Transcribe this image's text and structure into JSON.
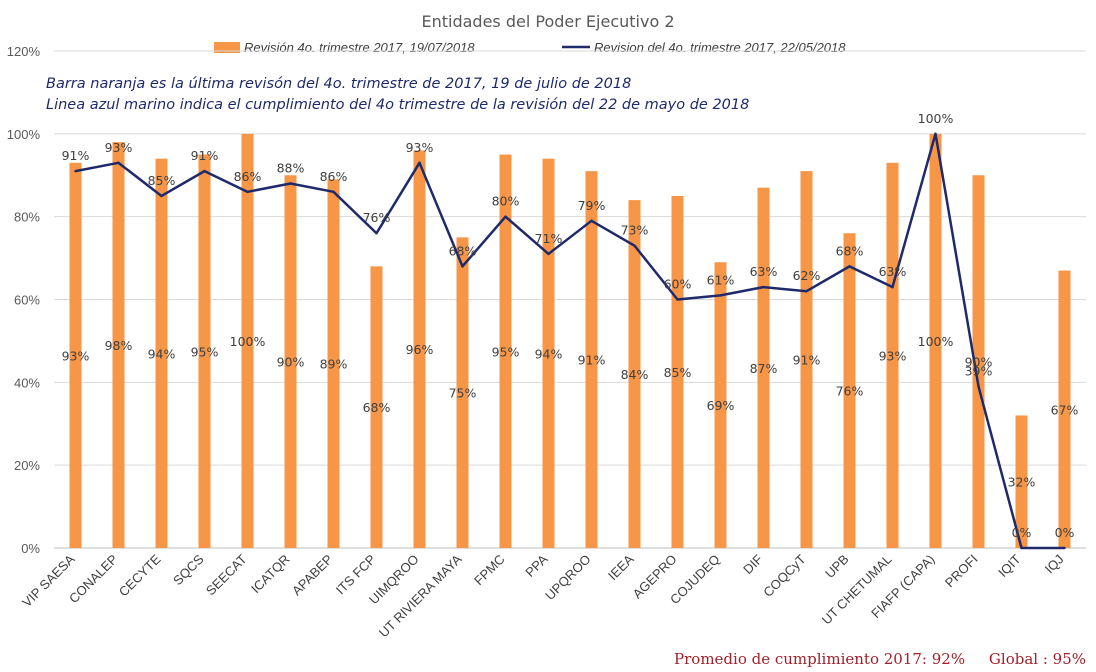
{
  "chart_data": {
    "type": "bar",
    "title": "Entidades del Poder Ejecutivo 2",
    "categories": [
      "VIP SAESA",
      "CONALEP",
      "CECYTE",
      "SQCS",
      "SEECAT",
      "ICATQR",
      "APABEP",
      "ITS FCP",
      "UIMQROO",
      "UT RIVIERA MAYA",
      "FPMC",
      "PPA",
      "UPQROO",
      "IEEA",
      "AGEPRO",
      "COJUDEQ",
      "DIF",
      "COQCyT",
      "UPB",
      "UT CHETUMAL",
      "FIAFP (CAPA)",
      "PROFI",
      "IQIT",
      "IQJ"
    ],
    "series": [
      {
        "name": "Revisión 4o. trimestre 2017, 19/07/2018",
        "kind": "bar",
        "color": "#f79646",
        "values": [
          93,
          98,
          94,
          95,
          100,
          90,
          89,
          68,
          96,
          75,
          95,
          94,
          91,
          84,
          85,
          69,
          87,
          91,
          76,
          93,
          100,
          90,
          32,
          67
        ],
        "labels": [
          "93%",
          "98%",
          "94%",
          "95%",
          "100%",
          "90%",
          "89%",
          "68%",
          "96%",
          "75%",
          "95%",
          "94%",
          "91%",
          "84%",
          "85%",
          "69%",
          "87%",
          "91%",
          "76%",
          "93%",
          "100%",
          "90%",
          "32%",
          "67%"
        ]
      },
      {
        "name": "Revision del 4o. trimestre 2017, 22/05/2018",
        "kind": "line",
        "color": "#1f2a6b",
        "values": [
          91,
          93,
          85,
          91,
          86,
          88,
          86,
          76,
          93,
          68,
          80,
          71,
          79,
          73,
          60,
          61,
          63,
          62,
          68,
          63,
          100,
          39,
          0,
          0
        ],
        "labels": [
          "91%",
          "93%",
          "85%",
          "91%",
          "86%",
          "88%",
          "86%",
          "76%",
          "93%",
          "68%",
          "80%",
          "71%",
          "79%",
          "73%",
          "60%",
          "61%",
          "63%",
          "62%",
          "68%",
          "63%",
          "100%",
          "39%",
          "0%",
          "0%"
        ]
      }
    ],
    "ylim": [
      0,
      120
    ],
    "yticks": [
      "0%",
      "20%",
      "40%",
      "60%",
      "80%",
      "100%",
      "120%"
    ],
    "grid": true,
    "legend": "top-center",
    "notes": [
      "Barra naranja es la última revisón del 4o. trimestre de 2017, 19 de julio de 2018",
      "Linea azul marino indica el cumplimiento del 4o trimestre de la revisión del 22 de mayo de 2018"
    ],
    "footer": "Promedio de cumplimiento 2017: 92%     Global : 95%"
  }
}
